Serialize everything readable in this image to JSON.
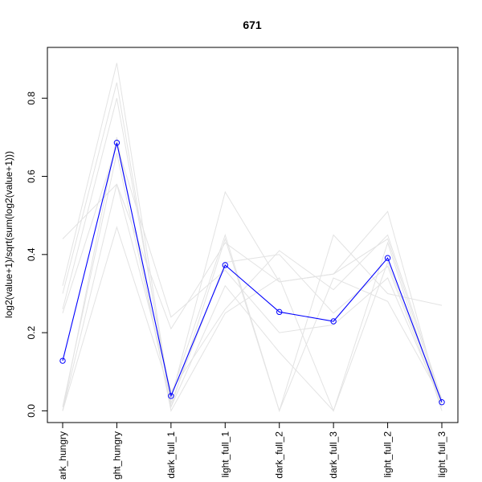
{
  "chart_data": {
    "type": "line",
    "title": "671",
    "xlabel": "",
    "ylabel": "log2(value+1)/sqrt(sum(log2(value+1)))",
    "ylim": [
      -0.03,
      0.93
    ],
    "yticks": [
      0.0,
      0.2,
      0.4,
      0.6,
      0.8
    ],
    "ytick_labels": [
      "0.0",
      "0.2",
      "0.4",
      "0.6",
      "0.8"
    ],
    "categories": [
      "dark_hungry",
      "light_hungry",
      "dark_full_1",
      "light_full_1",
      "dark_full_2",
      "dark_full_3",
      "light_full_2",
      "light_full_3"
    ],
    "category_labels": [
      "ark_hungry",
      "ght_hungry",
      "dark_full_1",
      "light_full_1",
      "dark_full_2",
      "dark_full_3",
      "light_full_2",
      "light_full_3"
    ],
    "grid": false,
    "series": [
      {
        "values": [
          0.128,
          0.686,
          0.038,
          0.373,
          0.253,
          0.229,
          0.391,
          0.022
        ],
        "color": "#0000ff",
        "markers": true,
        "highlight": true
      },
      {
        "values": [
          0.44,
          0.58,
          0.21,
          0.43,
          0.33,
          0.35,
          0.44,
          0.02
        ],
        "color": "#e3e3e3"
      },
      {
        "values": [
          0.32,
          0.89,
          0.02,
          0.38,
          0.4,
          0.25,
          0.37,
          0.01
        ],
        "color": "#e3e3e3"
      },
      {
        "values": [
          0.3,
          0.84,
          0.01,
          0.44,
          0.0,
          0.45,
          0.3,
          0.27
        ],
        "color": "#e3e3e3"
      },
      {
        "values": [
          0.26,
          0.8,
          0.03,
          0.56,
          0.33,
          0.35,
          0.51,
          0.01
        ],
        "color": "#e3e3e3"
      },
      {
        "values": [
          0.25,
          0.68,
          0.24,
          0.36,
          0.2,
          0.22,
          0.34,
          0.02
        ],
        "color": "#e3e3e3"
      },
      {
        "values": [
          0.0,
          0.58,
          0.05,
          0.26,
          0.41,
          0.31,
          0.45,
          0.03
        ],
        "color": "#e3e3e3"
      },
      {
        "values": [
          0.0,
          0.47,
          0.04,
          0.45,
          0.0,
          0.34,
          0.28,
          0.03
        ],
        "color": "#e3e3e3"
      },
      {
        "values": [
          0.0,
          0.7,
          0.0,
          0.25,
          0.34,
          0.0,
          0.43,
          0.0
        ],
        "color": "#e3e3e3"
      },
      {
        "values": [
          0.01,
          0.66,
          0.01,
          0.32,
          0.15,
          0.0,
          0.38,
          0.02
        ],
        "color": "#e3e3e3"
      }
    ]
  }
}
